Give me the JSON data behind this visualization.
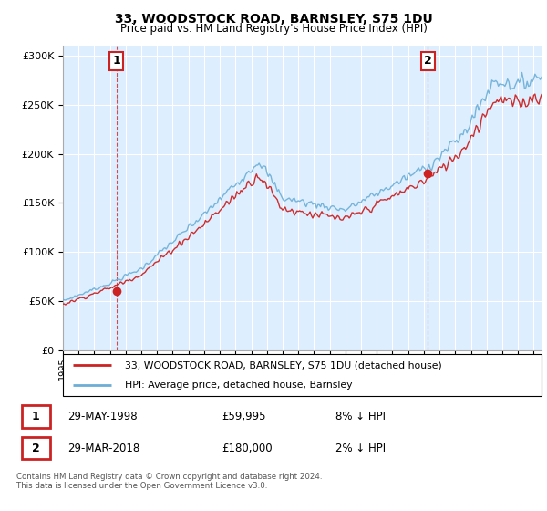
{
  "title": "33, WOODSTOCK ROAD, BARNSLEY, S75 1DU",
  "subtitle": "Price paid vs. HM Land Registry's House Price Index (HPI)",
  "legend_line1": "33, WOODSTOCK ROAD, BARNSLEY, S75 1DU (detached house)",
  "legend_line2": "HPI: Average price, detached house, Barnsley",
  "transaction1_date": "29-MAY-1998",
  "transaction1_price": "£59,995",
  "transaction1_hpi": "8% ↓ HPI",
  "transaction2_date": "29-MAR-2018",
  "transaction2_price": "£180,000",
  "transaction2_hpi": "2% ↓ HPI",
  "footer": "Contains HM Land Registry data © Crown copyright and database right 2024.\nThis data is licensed under the Open Government Licence v3.0.",
  "hpi_color": "#6baed6",
  "price_color": "#cc2222",
  "marker1_x": 1998.41,
  "marker1_y": 59995,
  "marker2_x": 2018.24,
  "marker2_y": 180000,
  "ylim": [
    0,
    310000
  ],
  "xlim_start": 1995.0,
  "xlim_end": 2025.5,
  "chart_bg": "#ddeeff"
}
